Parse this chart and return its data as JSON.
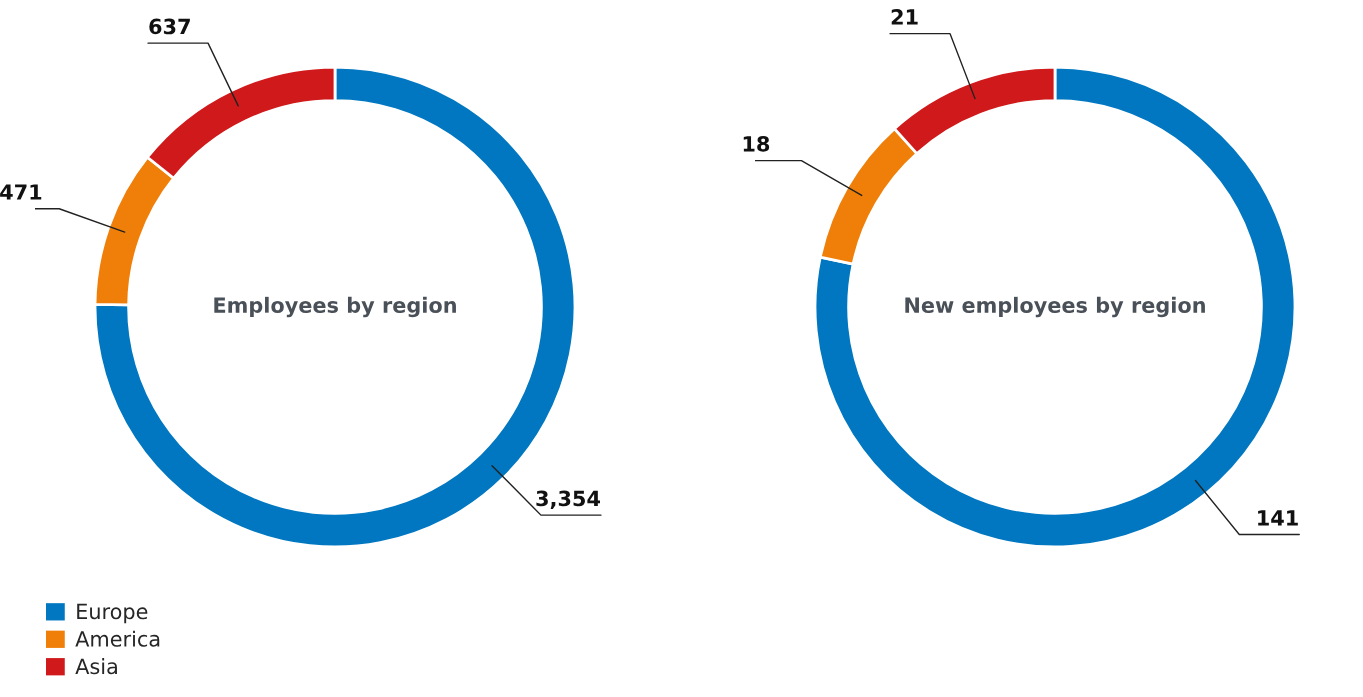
{
  "chart_data": [
    {
      "type": "donut",
      "title": "Employees by region",
      "categories": [
        "Europe",
        "America",
        "Asia"
      ],
      "values": [
        3354,
        471,
        637
      ],
      "value_labels": [
        "3,354",
        "471",
        "637"
      ],
      "colors": [
        "#0077c0",
        "#f07f09",
        "#d0191b"
      ],
      "legend": "bottom left"
    },
    {
      "type": "donut",
      "title": "New employees by region",
      "categories": [
        null,
        null,
        null
      ],
      "values": [
        141,
        18,
        21
      ],
      "data_labels": true,
      "colors": [
        "#0077c0",
        "#f07f09",
        "#d0191b"
      ]
    }
  ]
}
